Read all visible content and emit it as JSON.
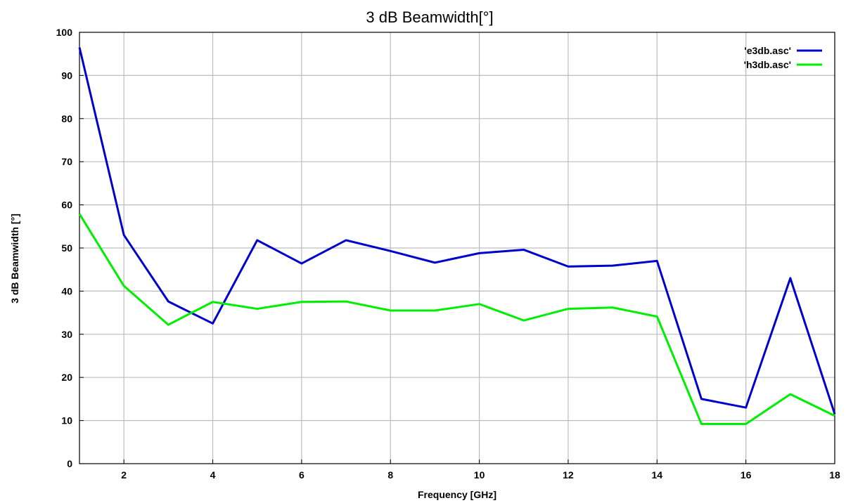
{
  "chart_data": {
    "type": "line",
    "title": "3 dB Beamwidth[°]",
    "xlabel": "Frequency [GHz]",
    "ylabel": "3 dB Beamwidth [°]",
    "xlim": [
      1,
      18
    ],
    "ylim": [
      0,
      100
    ],
    "x_ticks": [
      2,
      4,
      6,
      8,
      10,
      12,
      14,
      16,
      18
    ],
    "y_ticks": [
      0,
      10,
      20,
      30,
      40,
      50,
      60,
      70,
      80,
      90,
      100
    ],
    "x_tick_labels": [
      "2",
      "4",
      "6",
      "8",
      "10",
      "12",
      "14",
      "16",
      "18"
    ],
    "y_tick_labels": [
      "0",
      "10",
      "20",
      "30",
      "40",
      "50",
      "60",
      "70",
      "80",
      "90",
      "100"
    ],
    "grid": true,
    "legend_position": "top-right",
    "x": [
      1,
      2,
      3,
      4,
      5,
      6,
      7,
      8,
      9,
      10,
      11,
      12,
      13,
      14,
      15,
      16,
      17,
      18
    ],
    "series": [
      {
        "name": "'e3db.asc'",
        "color": "#0000cc",
        "values": [
          96.5,
          53.0,
          37.6,
          32.5,
          51.8,
          46.4,
          51.8,
          49.3,
          46.6,
          48.8,
          49.6,
          45.7,
          45.9,
          47.0,
          15.0,
          13.0,
          43.0,
          11.5
        ]
      },
      {
        "name": "'h3db.asc'",
        "color": "#00ee00",
        "values": [
          57.9,
          41.2,
          32.2,
          37.5,
          35.9,
          37.5,
          37.6,
          35.5,
          35.5,
          37.0,
          33.2,
          35.9,
          36.2,
          34.1,
          9.2,
          9.2,
          16.1,
          11.1
        ]
      }
    ]
  }
}
